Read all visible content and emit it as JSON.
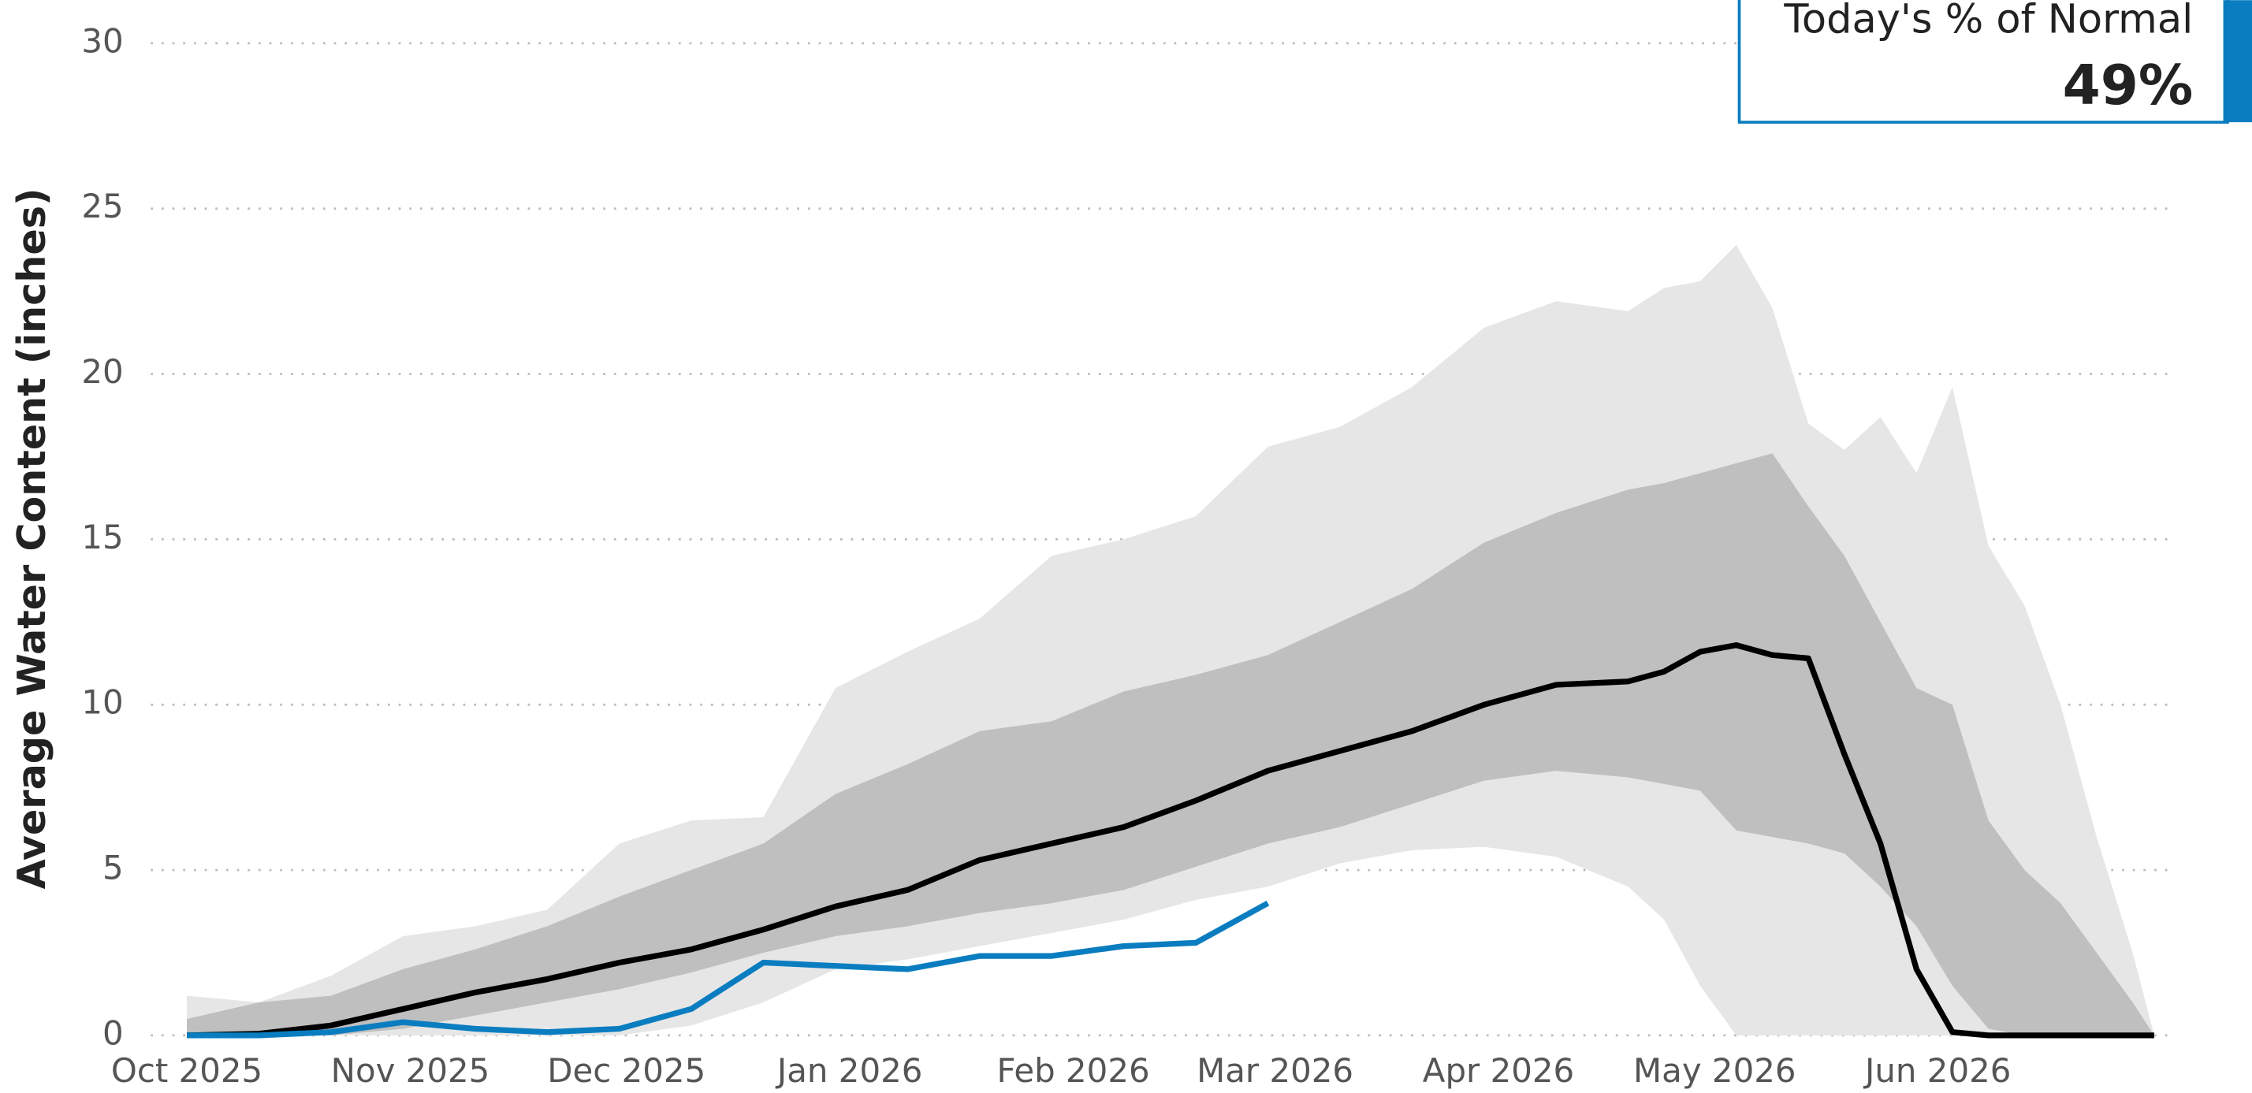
{
  "chart_data": {
    "type": "line",
    "y_label": "Average Water Content (inches)",
    "x": [
      0,
      10,
      20,
      30,
      40,
      50,
      60,
      70,
      80,
      90,
      100,
      110,
      120,
      130,
      140,
      150,
      160,
      170,
      180,
      190,
      200,
      205,
      210,
      215,
      220,
      225,
      230,
      235,
      240,
      245,
      250,
      255,
      260,
      265,
      270,
      273
    ],
    "xlim": [
      -5,
      276
    ],
    "xticks": [
      {
        "value": 0,
        "label": "Oct 2025"
      },
      {
        "value": 31,
        "label": "Nov 2025"
      },
      {
        "value": 61,
        "label": "Dec 2025"
      },
      {
        "value": 92,
        "label": "Jan 2026"
      },
      {
        "value": 123,
        "label": "Feb 2026"
      },
      {
        "value": 151,
        "label": "Mar 2026"
      },
      {
        "value": 182,
        "label": "Apr 2026"
      },
      {
        "value": 212,
        "label": "May 2026"
      },
      {
        "value": 243,
        "label": "Jun 2026"
      }
    ],
    "ylim": [
      0,
      30
    ],
    "yticks": [
      0,
      5,
      10,
      15,
      20,
      25,
      30
    ],
    "grid": true,
    "bands": [
      {
        "color": "#e6e6e6",
        "lower": [
          0,
          0,
          0,
          0,
          0,
          0,
          0,
          0.3,
          1.0,
          2.0,
          2.3,
          2.7,
          3.1,
          3.5,
          4.1,
          4.5,
          5.2,
          5.6,
          5.7,
          5.4,
          4.5,
          3.5,
          1.5,
          0,
          0,
          0,
          0,
          0,
          0,
          0,
          0,
          0,
          0,
          0,
          0,
          0
        ],
        "upper": [
          1.2,
          1.0,
          1.8,
          3.0,
          3.3,
          3.8,
          5.8,
          6.5,
          6.6,
          10.5,
          11.6,
          12.6,
          14.5,
          15.0,
          15.7,
          17.8,
          18.4,
          19.6,
          21.4,
          22.2,
          21.9,
          22.6,
          22.8,
          23.9,
          22.0,
          18.5,
          17.7,
          18.7,
          17.0,
          19.6,
          14.8,
          13.0,
          10.0,
          6.0,
          2.5,
          0
        ]
      },
      {
        "color": "#bfbfbf",
        "lower": [
          0,
          0,
          0,
          0.2,
          0.6,
          1.0,
          1.4,
          1.9,
          2.5,
          3.0,
          3.3,
          3.7,
          4.0,
          4.4,
          5.1,
          5.8,
          6.3,
          7.0,
          7.7,
          8.0,
          7.8,
          7.6,
          7.4,
          6.2,
          6.0,
          5.8,
          5.5,
          4.5,
          3.3,
          1.5,
          0.2,
          0,
          0,
          0,
          0,
          0
        ],
        "upper": [
          0.5,
          1.0,
          1.2,
          2.0,
          2.6,
          3.3,
          4.2,
          5.0,
          5.8,
          7.3,
          8.2,
          9.2,
          9.5,
          10.4,
          10.9,
          11.5,
          12.5,
          13.5,
          14.9,
          15.8,
          16.5,
          16.7,
          17.0,
          17.3,
          17.6,
          16.0,
          14.5,
          12.5,
          10.5,
          10.0,
          6.5,
          5.0,
          4.0,
          2.5,
          1.0,
          0
        ]
      }
    ],
    "series": [
      {
        "color": "#000000",
        "values": [
          0,
          0.05,
          0.3,
          0.8,
          1.3,
          1.7,
          2.2,
          2.6,
          3.2,
          3.9,
          4.4,
          5.3,
          5.8,
          6.3,
          7.1,
          8.0,
          8.6,
          9.2,
          10.0,
          10.6,
          10.7,
          11.0,
          11.6,
          11.8,
          11.5,
          11.4,
          8.5,
          5.8,
          2.0,
          0.1,
          0,
          0,
          0,
          0,
          0,
          0
        ]
      },
      {
        "color": "#0a7dc0",
        "values": [
          0,
          0,
          0.1,
          0.4,
          0.2,
          0.1,
          0.2,
          0.8,
          2.2,
          2.1,
          2.0,
          2.4,
          2.4,
          2.7,
          2.8,
          4.0,
          null,
          null,
          null,
          null,
          null,
          null,
          null,
          null,
          null,
          null,
          null,
          null,
          null,
          null,
          null,
          null,
          null,
          null,
          null,
          null
        ]
      }
    ],
    "callout": {
      "title": "Today's % of Normal",
      "value": "49%"
    }
  }
}
